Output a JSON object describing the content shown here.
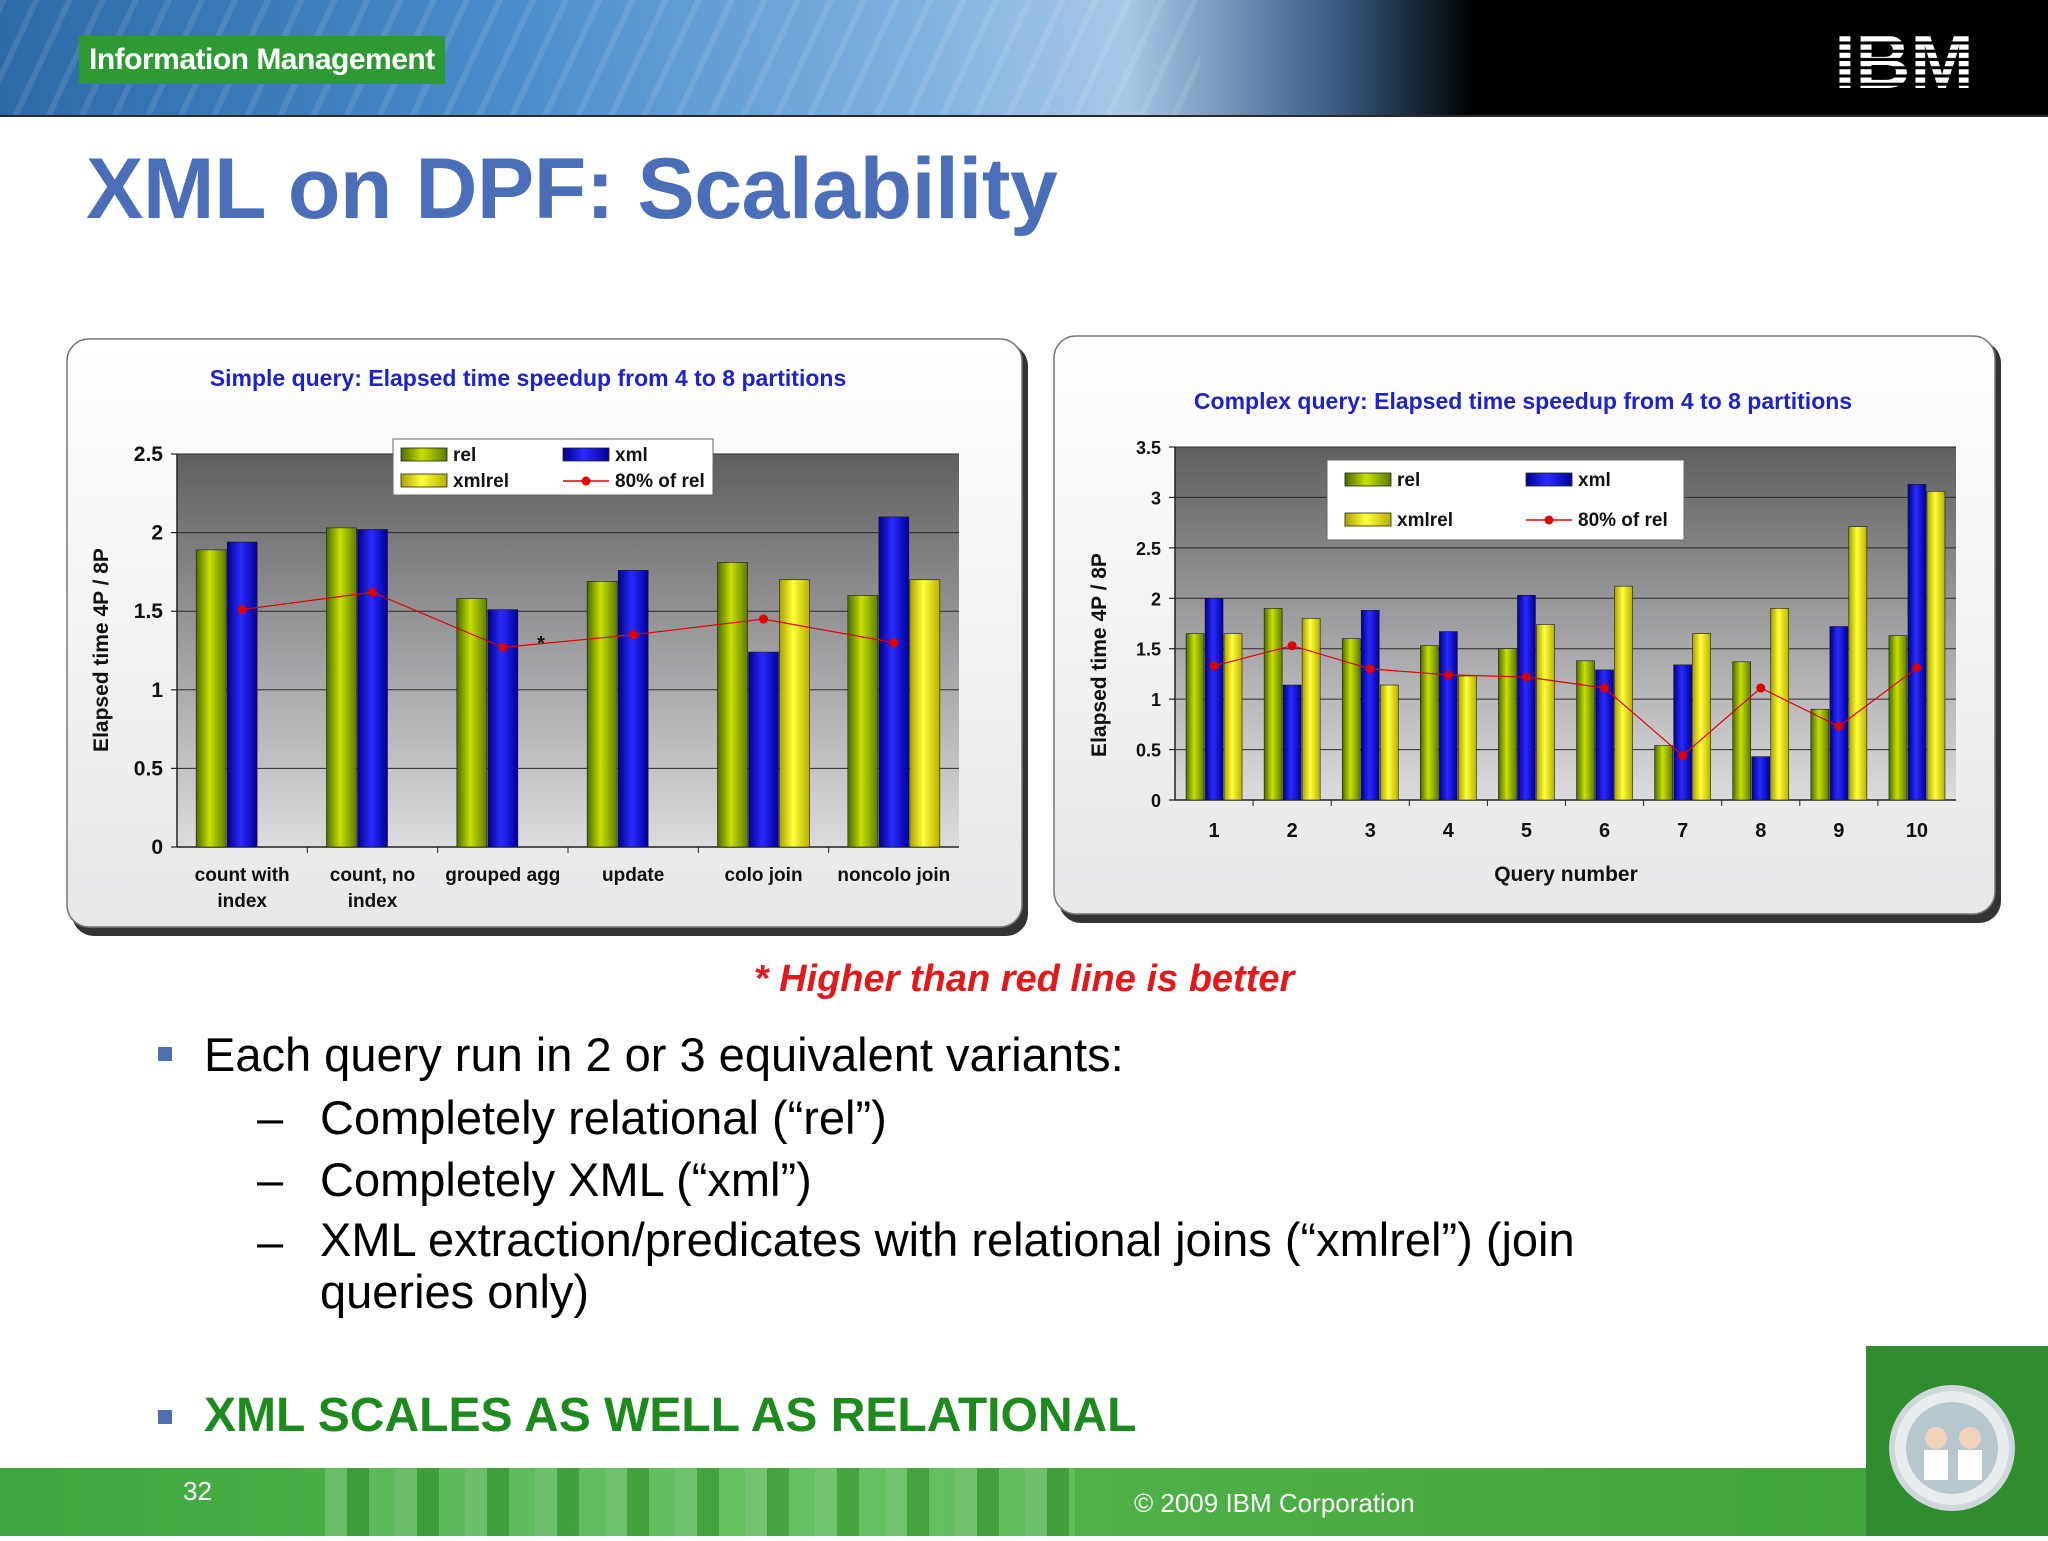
{
  "header": {
    "brand": "Information Management",
    "logo_text": "IBM"
  },
  "title": "XML on DPF: Scalability",
  "chart_data": [
    {
      "type": "bar",
      "title": "Simple query: Elapsed time speedup from 4 to 8 partitions",
      "xlabel": "",
      "ylabel": "Elapsed time 4P / 8P",
      "ylim": [
        0,
        2.5
      ],
      "yticks": [
        "0",
        "0.5",
        "1",
        "1.5",
        "2",
        "2.5"
      ],
      "categories": [
        "count with index",
        "count, no index",
        "grouped agg",
        "update",
        "colo join",
        "noncolo join"
      ],
      "category_lines": [
        [
          "count with",
          "index"
        ],
        [
          "count, no",
          "index"
        ],
        [
          "grouped agg"
        ],
        [
          "update"
        ],
        [
          "colo join"
        ],
        [
          "noncolo join"
        ]
      ],
      "series": [
        {
          "name": "rel",
          "values": [
            1.89,
            2.03,
            1.58,
            1.69,
            1.81,
            1.6
          ]
        },
        {
          "name": "xml",
          "values": [
            1.94,
            2.02,
            1.51,
            1.76,
            1.24,
            2.1
          ]
        },
        {
          "name": "xmlrel",
          "values": [
            null,
            null,
            null,
            null,
            1.7,
            1.7
          ]
        },
        {
          "name": "80% of rel",
          "values": [
            1.51,
            1.62,
            1.27,
            1.35,
            1.45,
            1.3
          ]
        }
      ],
      "annotations": [
        "*"
      ],
      "legend": "top-center",
      "grid": true
    },
    {
      "type": "bar",
      "title": "Complex query:  Elapsed time speedup from 4 to 8 partitions",
      "xlabel": "Query number",
      "ylabel": "Elapsed time 4P / 8P",
      "ylim": [
        0,
        3.5
      ],
      "yticks": [
        "0",
        "0.5",
        "1",
        "1.5",
        "2",
        "2.5",
        "3",
        "3.5"
      ],
      "categories": [
        "1",
        "2",
        "3",
        "4",
        "5",
        "6",
        "7",
        "8",
        "9",
        "10"
      ],
      "series": [
        {
          "name": "rel",
          "values": [
            1.65,
            1.9,
            1.6,
            1.53,
            1.5,
            1.38,
            0.54,
            1.37,
            0.9,
            1.63
          ]
        },
        {
          "name": "xml",
          "values": [
            2.0,
            1.14,
            1.88,
            1.67,
            2.03,
            1.29,
            1.34,
            0.43,
            1.72,
            3.13
          ]
        },
        {
          "name": "xmlrel",
          "values": [
            1.65,
            1.8,
            1.14,
            1.23,
            1.74,
            2.12,
            1.65,
            1.9,
            2.71,
            3.06
          ]
        },
        {
          "name": "80% of rel",
          "values": [
            1.33,
            1.53,
            1.3,
            1.24,
            1.22,
            1.11,
            0.44,
            1.11,
            0.73,
            1.31
          ]
        }
      ],
      "legend": "top-center",
      "grid": true
    }
  ],
  "note": "* Higher than red line is better",
  "bullets": {
    "main": "Each query run in 2 or 3 equivalent variants:",
    "dash": "–",
    "sub1": "Completely relational  (“rel”)",
    "sub2": "Completely XML  (“xml”)",
    "sub3": "XML extraction/predicates with relational joins   (“xmlrel”) (join queries only)",
    "conclusion": "XML SCALES AS WELL AS RELATIONAL"
  },
  "footer": {
    "page_number": "32",
    "copyright": "© 2009  IBM Corporation"
  },
  "colors": {
    "title_blue": "#4a6fb8",
    "rel_green": "#8fb000",
    "xml_blue": "#0000e0",
    "xmlrel_yellow": "#f0f000",
    "line_red": "#e00000",
    "note_red": "#e01a1a",
    "conclusion_green": "#1c8a1c"
  }
}
